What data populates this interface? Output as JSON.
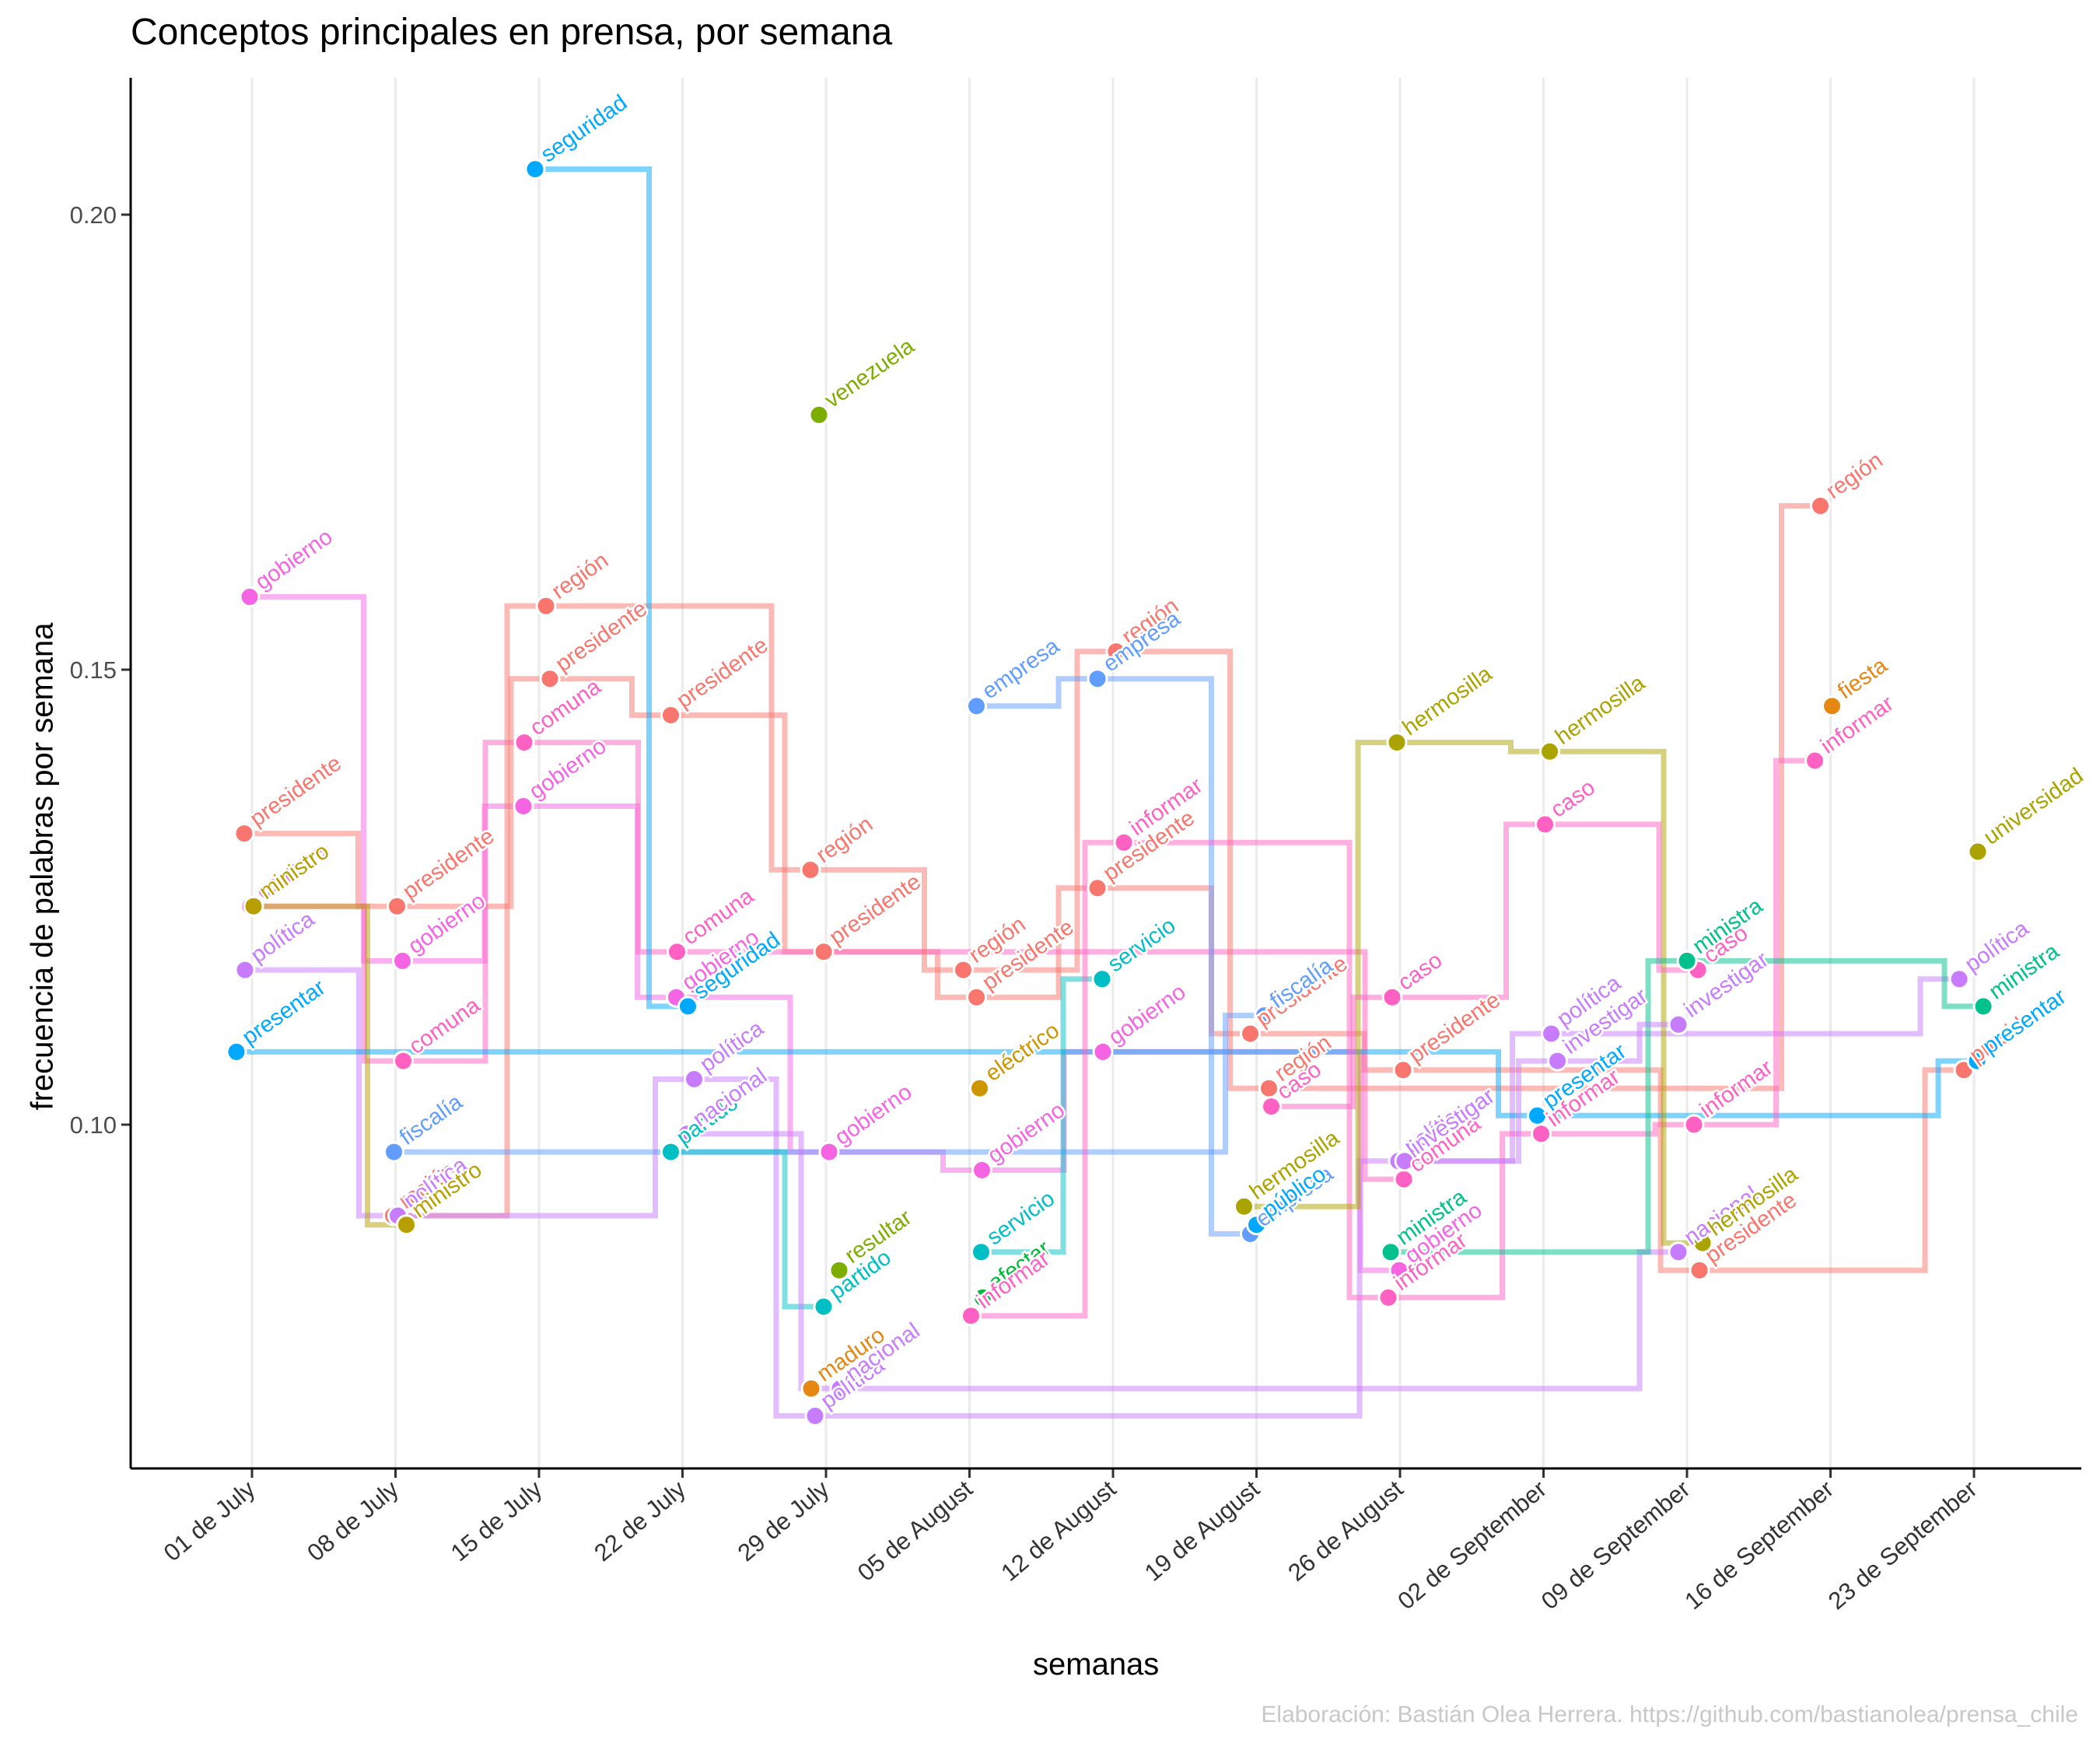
{
  "chart_data": {
    "type": "line",
    "title": "Conceptos principales en prensa, por semana",
    "xlabel": "semanas",
    "ylabel": "frecuencia de palabras por semana",
    "caption": "Elaboración: Bastián Olea Herrera. https://github.com/bastianolea/prensa_chile",
    "x_ticks": [
      "01 de July",
      "08 de July",
      "15 de July",
      "22 de July",
      "29 de July",
      "05 de August",
      "12 de August",
      "19 de August",
      "26 de August",
      "02 de September",
      "09 de September",
      "16 de September",
      "23 de September"
    ],
    "x_dates": [
      "2024-07-01",
      "2024-07-08",
      "2024-07-15",
      "2024-07-22",
      "2024-07-29",
      "2024-08-05",
      "2024-08-12",
      "2024-08-19",
      "2024-08-26",
      "2024-09-02",
      "2024-09-09",
      "2024-09-16",
      "2024-09-23"
    ],
    "y_ticks": [
      "0.10",
      "0.15",
      "0.20"
    ],
    "y_tick_values": [
      0.1,
      0.15,
      0.2
    ],
    "ylim": [
      0.062,
      0.215
    ],
    "grid": "vertical major gridlines",
    "legend": "none",
    "step_lines": "horizontal-vertical steps connect each word across weeks",
    "series": [
      {
        "name": "gobierno",
        "color": "#F564E3",
        "points": [
          [
            "2024-07-01",
            0.158
          ],
          [
            "2024-07-08",
            0.118
          ],
          [
            "2024-07-15",
            0.135
          ],
          [
            "2024-07-22",
            0.114
          ],
          [
            "2024-07-29",
            0.097
          ],
          [
            "2024-08-05",
            0.095
          ],
          [
            "2024-08-12",
            0.108
          ],
          [
            "2024-08-26",
            0.084
          ]
        ]
      },
      {
        "name": "presidente",
        "color": "#F8766D",
        "points": [
          [
            "2024-07-01",
            0.132
          ],
          [
            "2024-07-08",
            0.124
          ],
          [
            "2024-07-15",
            0.149
          ],
          [
            "2024-07-22",
            0.145
          ],
          [
            "2024-07-29",
            0.119
          ],
          [
            "2024-08-05",
            0.114
          ],
          [
            "2024-08-12",
            0.126
          ],
          [
            "2024-08-19",
            0.11
          ],
          [
            "2024-08-26",
            0.106
          ],
          [
            "2024-09-09",
            0.084
          ],
          [
            "2024-09-23",
            0.106
          ]
        ]
      },
      {
        "name": "comuna",
        "color": "#FF61C3",
        "points": [
          [
            "2024-07-01",
            0.124
          ],
          [
            "2024-07-08",
            0.107
          ],
          [
            "2024-07-15",
            0.142
          ],
          [
            "2024-07-22",
            0.119
          ],
          [
            "2024-08-26",
            0.094
          ]
        ]
      },
      {
        "name": "región",
        "color": "#F8766D",
        "points": [
          [
            "2024-07-08",
            0.09
          ],
          [
            "2024-07-15",
            0.157
          ],
          [
            "2024-07-29",
            0.128
          ],
          [
            "2024-08-05",
            0.117
          ],
          [
            "2024-08-12",
            0.152
          ],
          [
            "2024-08-19",
            0.104
          ],
          [
            "2024-09-16",
            0.168
          ]
        ]
      },
      {
        "name": "política",
        "color": "#C77CFF",
        "points": [
          [
            "2024-07-01",
            0.117
          ],
          [
            "2024-07-08",
            0.09
          ],
          [
            "2024-07-22",
            0.105
          ],
          [
            "2024-07-29",
            0.068
          ],
          [
            "2024-08-26",
            0.096
          ],
          [
            "2024-09-02",
            0.11
          ],
          [
            "2024-09-23",
            0.116
          ]
        ]
      },
      {
        "name": "ministro",
        "color": "#B79F00",
        "points": [
          [
            "2024-07-01",
            0.124
          ],
          [
            "2024-07-08",
            0.089
          ]
        ]
      },
      {
        "name": "presentar",
        "color": "#00A9FF",
        "points": [
          [
            "2024-07-01",
            0.108
          ],
          [
            "2024-09-02",
            0.101
          ],
          [
            "2024-09-23",
            0.107
          ]
        ]
      },
      {
        "name": "fiscalía",
        "color": "#619CFF",
        "points": [
          [
            "2024-07-08",
            0.097
          ],
          [
            "2024-08-19",
            0.112
          ]
        ]
      },
      {
        "name": "seguridad",
        "color": "#00A9FF",
        "points": [
          [
            "2024-07-15",
            0.205
          ],
          [
            "2024-07-22",
            0.113
          ]
        ]
      },
      {
        "name": "partido",
        "color": "#00BFC4",
        "points": [
          [
            "2024-07-22",
            0.097
          ],
          [
            "2024-07-29",
            0.08
          ]
        ]
      },
      {
        "name": "nacional",
        "color": "#C77CFF",
        "points": [
          [
            "2024-07-22",
            0.099
          ],
          [
            "2024-07-29",
            0.071
          ],
          [
            "2024-09-09",
            0.086
          ]
        ]
      },
      {
        "name": "venezuela",
        "color": "#7CAE00",
        "points": [
          [
            "2024-07-29",
            0.178
          ]
        ]
      },
      {
        "name": "resultar",
        "color": "#7CAE00",
        "points": [
          [
            "2024-07-29",
            0.084
          ]
        ]
      },
      {
        "name": "maduro",
        "color": "#E68613",
        "points": [
          [
            "2024-07-29",
            0.071
          ]
        ]
      },
      {
        "name": "empresa",
        "color": "#619CFF",
        "points": [
          [
            "2024-08-05",
            0.146
          ],
          [
            "2024-08-12",
            0.149
          ],
          [
            "2024-08-19",
            0.088
          ]
        ]
      },
      {
        "name": "eléctrico",
        "color": "#CD9600",
        "points": [
          [
            "2024-08-05",
            0.104
          ]
        ]
      },
      {
        "name": "servicio",
        "color": "#00BFC4",
        "points": [
          [
            "2024-08-05",
            0.086
          ],
          [
            "2024-08-12",
            0.116
          ]
        ]
      },
      {
        "name": "afectar",
        "color": "#00BA38",
        "points": [
          [
            "2024-08-05",
            0.081
          ]
        ]
      },
      {
        "name": "informar",
        "color": "#FF61C3",
        "points": [
          [
            "2024-08-05",
            0.079
          ],
          [
            "2024-08-12",
            0.131
          ],
          [
            "2024-08-26",
            0.081
          ],
          [
            "2024-09-02",
            0.099
          ],
          [
            "2024-09-09",
            0.1
          ],
          [
            "2024-09-16",
            0.14
          ]
        ]
      },
      {
        "name": "hermosilla",
        "color": "#ABA300",
        "points": [
          [
            "2024-08-19",
            0.091
          ],
          [
            "2024-08-26",
            0.142
          ],
          [
            "2024-09-02",
            0.141
          ],
          [
            "2024-09-09",
            0.087
          ]
        ]
      },
      {
        "name": "caso",
        "color": "#FF61C3",
        "points": [
          [
            "2024-08-19",
            0.102
          ],
          [
            "2024-08-26",
            0.114
          ],
          [
            "2024-09-02",
            0.133
          ],
          [
            "2024-09-09",
            0.117
          ]
        ]
      },
      {
        "name": "público",
        "color": "#00A9FF",
        "points": [
          [
            "2024-08-19",
            0.089
          ]
        ]
      },
      {
        "name": "ministra",
        "color": "#00C08B",
        "points": [
          [
            "2024-08-26",
            0.086
          ],
          [
            "2024-09-09",
            0.118
          ],
          [
            "2024-09-23",
            0.113
          ]
        ]
      },
      {
        "name": "investigar",
        "color": "#C77CFF",
        "points": [
          [
            "2024-08-26",
            0.096
          ],
          [
            "2024-09-02",
            0.107
          ],
          [
            "2024-09-09",
            0.111
          ]
        ]
      },
      {
        "name": "fiesta",
        "color": "#E68613",
        "points": [
          [
            "2024-09-16",
            0.146
          ]
        ]
      },
      {
        "name": "universidad",
        "color": "#ABA300",
        "points": [
          [
            "2024-09-23",
            0.13
          ]
        ]
      }
    ]
  }
}
